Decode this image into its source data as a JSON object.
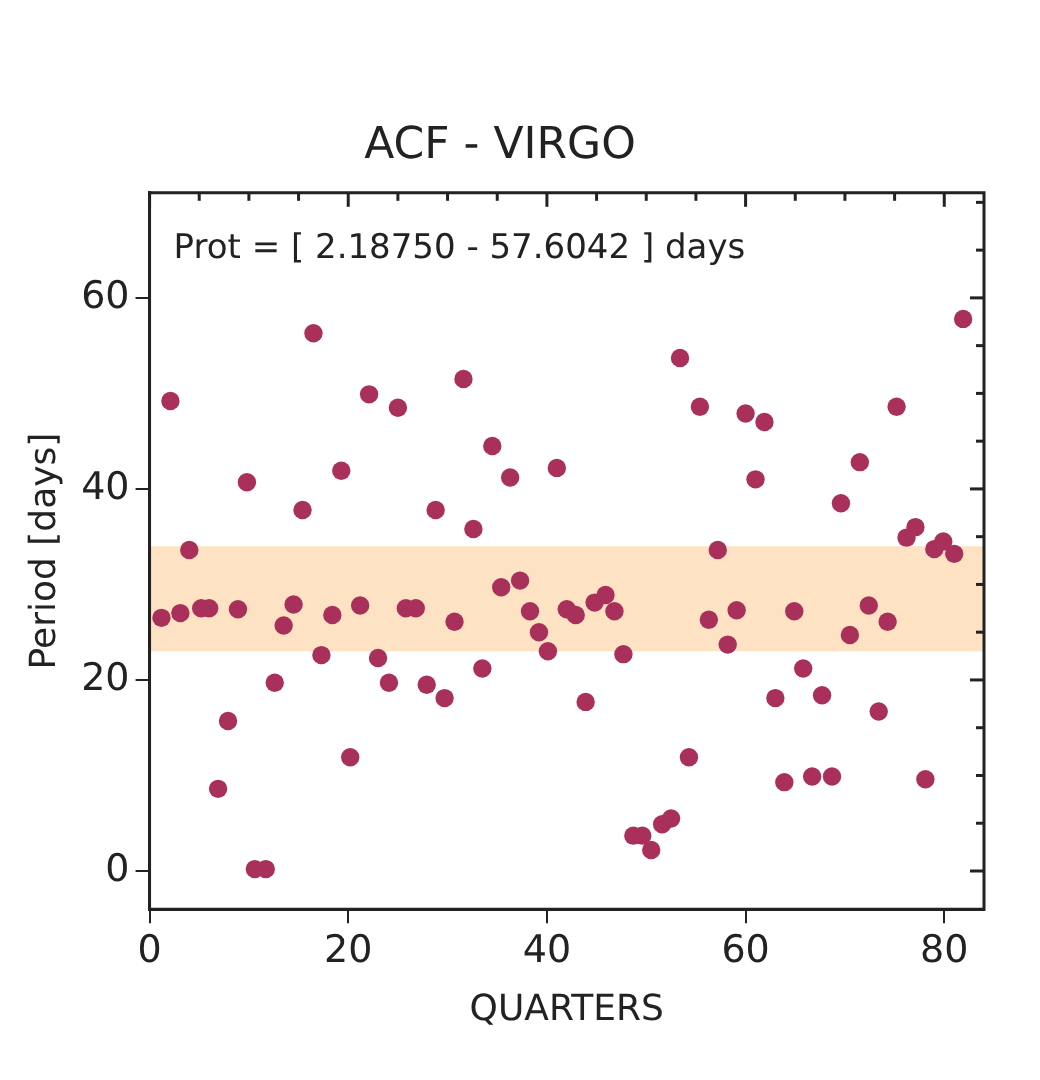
{
  "chart_data": {
    "type": "scatter",
    "title": "ACF - VIRGO",
    "xlabel": "QUARTERS",
    "ylabel": "Period [days]",
    "annotations": [
      "Prot = [ 2.18750 - 57.6042 ] days"
    ],
    "xlim": [
      0,
      84
    ],
    "xticks": [
      0,
      20,
      40,
      60,
      80
    ],
    "ylim": [
      -4,
      71
    ],
    "yticks": [
      0,
      20,
      40,
      60
    ],
    "grid": false,
    "legend": false,
    "marker": "circle",
    "bands": [
      {
        "axis": "y",
        "from": 23,
        "to": 34,
        "label": null,
        "color": "#fde3c4"
      }
    ],
    "series": [
      {
        "color": "#a8305a",
        "x": [
          1.2,
          2.1,
          3.1,
          4.0,
          5.2,
          6.0,
          6.9,
          7.9,
          8.9,
          9.8,
          10.6,
          11.7,
          12.6,
          13.5,
          14.5,
          15.4,
          16.5,
          17.3,
          18.4,
          19.3,
          20.2,
          21.2,
          22.1,
          23.0,
          24.1,
          25.0,
          25.8,
          26.8,
          27.9,
          28.8,
          29.7,
          30.7,
          31.6,
          32.6,
          33.5,
          34.5,
          35.4,
          36.3,
          37.3,
          38.3,
          39.2,
          40.1,
          41.0,
          42.0,
          42.9,
          43.9,
          44.8,
          45.9,
          46.8,
          47.7,
          48.7,
          49.6,
          50.5,
          51.6,
          52.5,
          53.4,
          54.3,
          55.4,
          56.3,
          57.2,
          58.2,
          59.1,
          60.0,
          61.0,
          61.9,
          63.0,
          63.9,
          64.9,
          65.8,
          66.7,
          67.7,
          68.7,
          69.6,
          70.5,
          71.5,
          72.4,
          73.4,
          74.3,
          75.2,
          76.2,
          77.1,
          78.1,
          79.0,
          79.9,
          81.0,
          81.9
        ],
        "values": [
          26.5,
          49.2,
          27.0,
          33.6,
          27.5,
          27.5,
          8.6,
          15.7,
          27.4,
          40.7,
          0.2,
          0.2,
          19.7,
          25.7,
          27.9,
          37.8,
          56.3,
          22.6,
          26.8,
          41.9,
          11.9,
          27.8,
          49.9,
          22.3,
          19.7,
          48.5,
          27.5,
          27.5,
          19.5,
          37.8,
          18.1,
          26.1,
          51.5,
          35.8,
          21.2,
          44.5,
          29.7,
          41.2,
          30.4,
          27.2,
          25.0,
          23.0,
          42.2,
          27.4,
          26.8,
          17.7,
          28.1,
          28.9,
          27.2,
          22.7,
          3.7,
          3.7,
          2.2,
          4.9,
          5.5,
          53.7,
          11.9,
          48.6,
          26.3,
          33.6,
          23.7,
          27.3,
          47.9,
          41.0,
          47.0,
          18.1,
          9.3,
          27.2,
          21.2,
          9.9,
          18.4,
          9.9,
          38.5,
          24.7,
          42.8,
          27.8,
          16.7,
          26.1,
          48.6,
          34.9,
          36.0,
          9.6,
          33.7,
          34.5,
          33.2,
          57.8
        ]
      }
    ]
  }
}
